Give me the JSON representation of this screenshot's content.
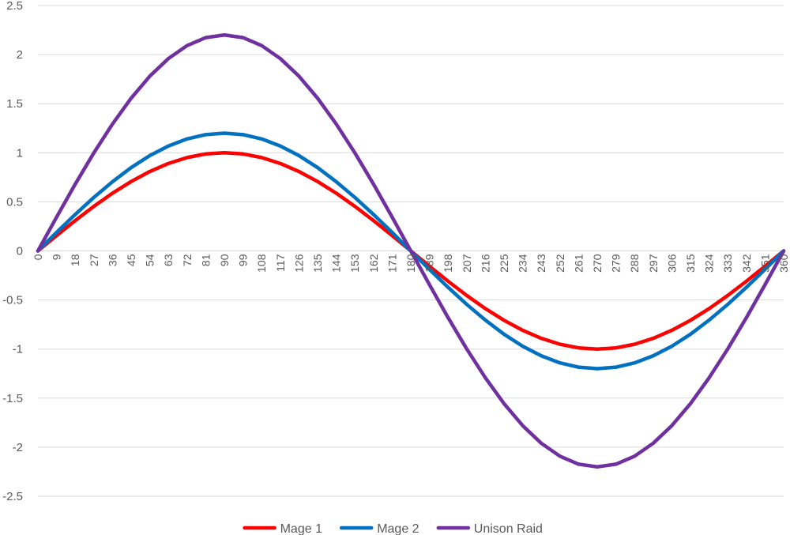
{
  "chart_data": {
    "type": "line",
    "title": "",
    "xlabel": "",
    "ylabel": "",
    "ylim": [
      -2.5,
      2.5
    ],
    "y_ticks": [
      "2.5",
      "2",
      "1.5",
      "1",
      "0.5",
      "0",
      "-0.5",
      "-1",
      "-1.5",
      "-2",
      "-2.5"
    ],
    "y_tick_values": [
      2.5,
      2,
      1.5,
      1,
      0.5,
      0,
      -0.5,
      -1,
      -1.5,
      -2,
      -2.5
    ],
    "x_tick_labels": [
      "0",
      "9",
      "18",
      "27",
      "36",
      "45",
      "54",
      "63",
      "72",
      "81",
      "90",
      "99",
      "108",
      "117",
      "126",
      "135",
      "144",
      "153",
      "162",
      "171",
      "180",
      "189",
      "198",
      "207",
      "216",
      "225",
      "234",
      "243",
      "252",
      "261",
      "270",
      "279",
      "288",
      "297",
      "306",
      "315",
      "324",
      "333",
      "342",
      "351",
      "360"
    ],
    "x": [
      0,
      9,
      18,
      27,
      36,
      45,
      54,
      63,
      72,
      81,
      90,
      99,
      108,
      117,
      126,
      135,
      144,
      153,
      162,
      171,
      180,
      189,
      198,
      207,
      216,
      225,
      234,
      243,
      252,
      261,
      270,
      279,
      288,
      297,
      306,
      315,
      324,
      333,
      342,
      351,
      360
    ],
    "grid": true,
    "legend_position": "bottom",
    "series": [
      {
        "name": "Mage 1",
        "color": "#ff0000",
        "values": [
          0,
          0.156,
          0.309,
          0.454,
          0.588,
          0.707,
          0.809,
          0.891,
          0.951,
          0.988,
          1,
          0.988,
          0.951,
          0.891,
          0.809,
          0.707,
          0.588,
          0.454,
          0.309,
          0.156,
          0,
          -0.156,
          -0.309,
          -0.454,
          -0.588,
          -0.707,
          -0.809,
          -0.891,
          -0.951,
          -0.988,
          -1,
          -0.988,
          -0.951,
          -0.891,
          -0.809,
          -0.707,
          -0.588,
          -0.454,
          -0.309,
          -0.156,
          0
        ]
      },
      {
        "name": "Mage 2",
        "color": "#0070c0",
        "values": [
          0,
          0.188,
          0.371,
          0.545,
          0.705,
          0.849,
          0.971,
          1.069,
          1.141,
          1.185,
          1.2,
          1.185,
          1.141,
          1.069,
          0.971,
          0.849,
          0.705,
          0.545,
          0.371,
          0.188,
          0,
          -0.188,
          -0.371,
          -0.545,
          -0.705,
          -0.849,
          -0.971,
          -1.069,
          -1.141,
          -1.185,
          -1.2,
          -1.185,
          -1.141,
          -1.069,
          -0.971,
          -0.849,
          -0.705,
          -0.545,
          -0.371,
          -0.188,
          0
        ]
      },
      {
        "name": "Unison Raid",
        "color": "#7030a0",
        "values": [
          0,
          0.344,
          0.68,
          0.999,
          1.293,
          1.556,
          1.78,
          1.96,
          2.092,
          2.173,
          2.2,
          2.173,
          2.092,
          1.96,
          1.78,
          1.556,
          1.293,
          0.999,
          0.68,
          0.344,
          0,
          -0.344,
          -0.68,
          -0.999,
          -1.293,
          -1.556,
          -1.78,
          -1.96,
          -2.092,
          -2.173,
          -2.2,
          -2.173,
          -2.092,
          -1.96,
          -1.78,
          -1.556,
          -1.293,
          -0.999,
          -0.68,
          -0.344,
          0
        ]
      }
    ]
  }
}
